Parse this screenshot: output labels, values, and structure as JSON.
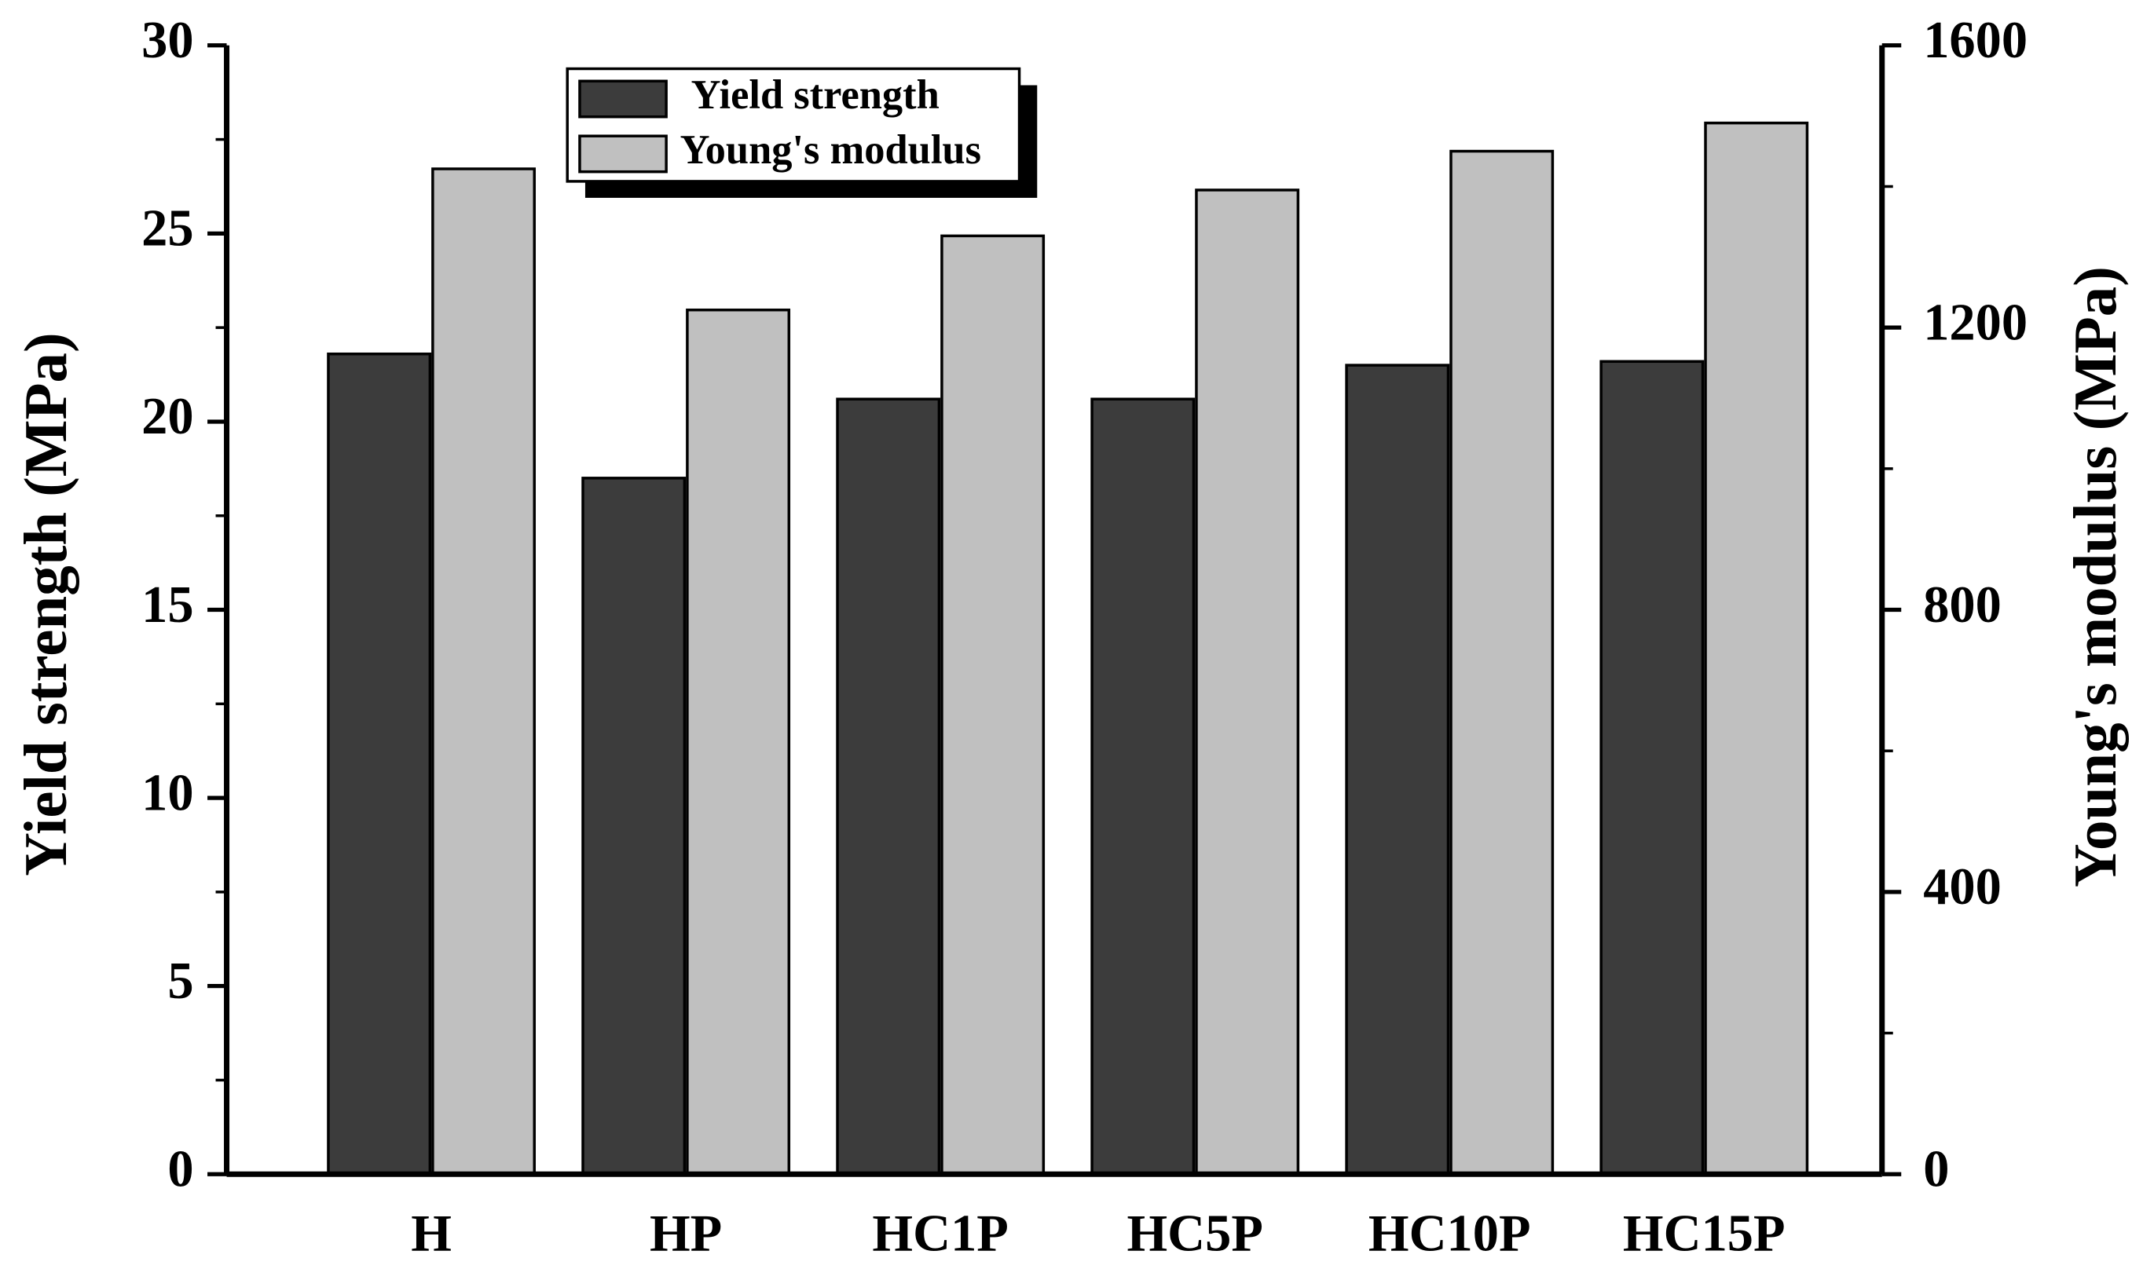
{
  "chart_data": {
    "type": "bar",
    "y_label": "Yield strength (MPa)",
    "y2_label": "Young's modulus (MPa)",
    "categories": [
      "H",
      "HP",
      "HC1P",
      "HC5P",
      "HC10P",
      "HC15P"
    ],
    "series": [
      {
        "name": "Yield strength",
        "color": "#3c3c3c",
        "values": [
          21.8,
          18.5,
          20.6,
          20.6,
          21.5,
          21.6
        ]
      },
      {
        "name": "Young's modulus",
        "color": "#c0c0c0",
        "axis": "y2",
        "values": [
          1425,
          1225,
          1330,
          1395,
          1450,
          1490
        ]
      }
    ],
    "ylim": [
      0,
      30
    ],
    "yticks": [
      0,
      5,
      10,
      15,
      20,
      25,
      30
    ],
    "y2lim": [
      0,
      1600
    ],
    "y2ticks": [
      0,
      400,
      800,
      1200,
      1600
    ],
    "legend": "upper-left"
  }
}
